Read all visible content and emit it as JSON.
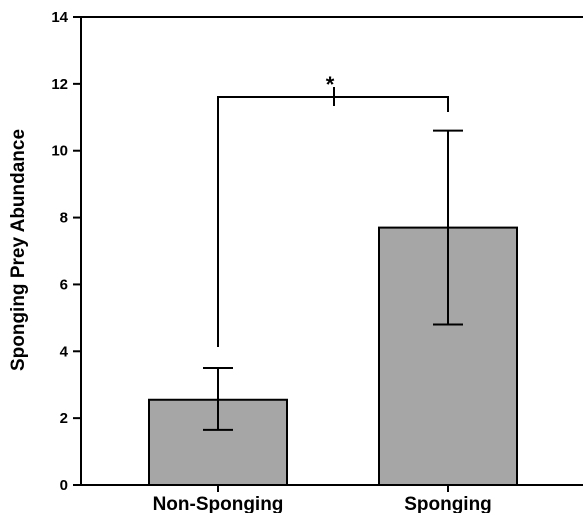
{
  "chart_data": {
    "type": "bar",
    "title": "",
    "xlabel": "",
    "ylabel": "Sponging Prey Abundance",
    "ylim": [
      0,
      14
    ],
    "yticks": [
      0,
      2,
      4,
      6,
      8,
      10,
      12,
      14
    ],
    "categories": [
      "Non-Sponging",
      "Sponging"
    ],
    "values": [
      2.55,
      7.7
    ],
    "error_low": [
      1.65,
      4.8
    ],
    "error_high": [
      3.5,
      10.6
    ],
    "grid": false,
    "significance": {
      "between": [
        "Non-Sponging",
        "Sponging"
      ],
      "label": "*"
    },
    "colors": {
      "bar": "#a6a6a6",
      "stroke": "#000000",
      "background": "#ffffff"
    }
  }
}
